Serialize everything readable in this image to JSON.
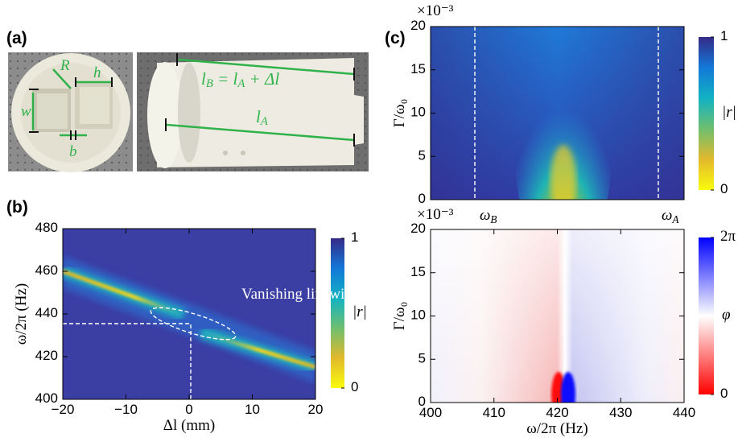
{
  "panel_labels": [
    "(a)",
    "(b)",
    "(c)"
  ],
  "photo": {
    "labels": [
      "R",
      "h",
      "w",
      "b",
      "l_B = l_A + Δl",
      "l_A"
    ]
  },
  "chart_data": [
    {
      "type": "heatmap",
      "xlabel": "Δl (mm)",
      "ylabel": "ω/2π (Hz)",
      "xlim": [
        -20,
        20
      ],
      "xticks": [
        {
          "value": -20,
          "label": "−20"
        },
        {
          "value": -10,
          "label": "−10"
        },
        0,
        10,
        20
      ],
      "ylim": [
        400,
        480
      ],
      "yticks": [
        400,
        420,
        440,
        460,
        480
      ],
      "annotations": [
        "Vanishing linewidth"
      ],
      "colorbar": {
        "label": "|r|",
        "lim": [
          0,
          1
        ],
        "ticks": [
          0,
          1
        ]
      }
    },
    {
      "type": "heatmap",
      "ylabel": "Γ/ω₀",
      "y_multiplier": "×10⁻³",
      "ylim": [
        0,
        20
      ],
      "yticks": [
        0,
        5,
        10,
        15,
        20
      ],
      "annotations": [
        "ω_B",
        "ω_A"
      ],
      "colorbar": {
        "label": "|r|",
        "lim": [
          0,
          1
        ],
        "ticks": [
          0,
          1
        ]
      }
    },
    {
      "type": "heatmap",
      "xlabel": "ω/2π (Hz)",
      "ylabel": "Γ/ω₀",
      "y_multiplier": "×10⁻³",
      "xlim": [
        400,
        440
      ],
      "xticks": [
        400,
        410,
        420,
        430,
        440
      ],
      "ylim": [
        0,
        20
      ],
      "yticks": [
        0,
        5,
        10,
        15,
        20
      ],
      "colorbar": {
        "label": "φ",
        "lim": [
          0,
          6.283
        ],
        "ticks": [
          0,
          {
            "value": 6.283,
            "label": "2π"
          }
        ]
      }
    }
  ]
}
